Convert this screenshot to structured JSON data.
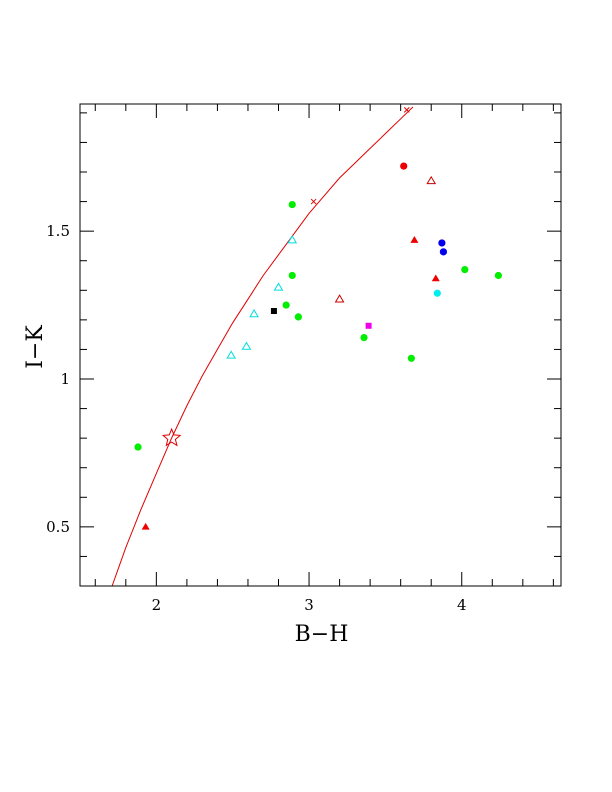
{
  "chart_data": {
    "type": "scatter",
    "xlabel": "B−H",
    "ylabel": "I−K",
    "xlim": [
      1.5,
      4.65
    ],
    "ylim": [
      0.3,
      1.93
    ],
    "x_ticks": [
      2,
      3,
      4
    ],
    "x_tick_labels": [
      "2",
      "3",
      "4"
    ],
    "y_ticks": [
      0.5,
      1,
      1.5
    ],
    "y_tick_labels": [
      "0.5",
      "1",
      "1.5"
    ],
    "grid": false,
    "curve": {
      "color": "#e00000",
      "points": [
        [
          1.71,
          0.3
        ],
        [
          1.8,
          0.43
        ],
        [
          1.9,
          0.56
        ],
        [
          2.0,
          0.68
        ],
        [
          2.1,
          0.8
        ],
        [
          2.2,
          0.91
        ],
        [
          2.3,
          1.01
        ],
        [
          2.4,
          1.1
        ],
        [
          2.5,
          1.19
        ],
        [
          2.6,
          1.27
        ],
        [
          2.7,
          1.35
        ],
        [
          2.8,
          1.42
        ],
        [
          2.9,
          1.49
        ],
        [
          3.0,
          1.56
        ],
        [
          3.1,
          1.62
        ],
        [
          3.2,
          1.68
        ],
        [
          3.3,
          1.73
        ],
        [
          3.4,
          1.78
        ],
        [
          3.5,
          1.83
        ],
        [
          3.6,
          1.88
        ],
        [
          3.68,
          1.92
        ]
      ]
    },
    "curve_markers": [
      {
        "x": 3.03,
        "y": 1.6
      },
      {
        "x": 3.64,
        "y": 1.91
      }
    ],
    "star_marker": {
      "x": 2.1,
      "y": 0.8,
      "color": "#e00000"
    },
    "series": [
      {
        "marker": "circle",
        "color": "#00ee00",
        "points": [
          [
            1.88,
            0.77
          ],
          [
            2.89,
            1.59
          ],
          [
            2.89,
            1.35
          ],
          [
            2.85,
            1.25
          ],
          [
            2.93,
            1.21
          ],
          [
            3.36,
            1.14
          ],
          [
            3.67,
            1.07
          ],
          [
            4.02,
            1.37
          ],
          [
            4.24,
            1.35
          ]
        ]
      },
      {
        "marker": "circle",
        "color": "#ee0000",
        "points": [
          [
            3.62,
            1.72
          ]
        ]
      },
      {
        "marker": "circle",
        "color": "#0000ee",
        "points": [
          [
            3.87,
            1.46
          ],
          [
            3.88,
            1.43
          ]
        ]
      },
      {
        "marker": "circle",
        "color": "#00eeee",
        "points": [
          [
            3.84,
            1.29
          ]
        ]
      },
      {
        "marker": "triangle-filled",
        "color": "#ee0000",
        "points": [
          [
            1.93,
            0.5
          ],
          [
            3.69,
            1.47
          ],
          [
            3.83,
            1.34
          ]
        ]
      },
      {
        "marker": "triangle-open",
        "color": "#cc0000",
        "points": [
          [
            3.8,
            1.67
          ],
          [
            3.2,
            1.27
          ]
        ]
      },
      {
        "marker": "triangle-open",
        "color": "#00dddd",
        "points": [
          [
            2.89,
            1.47
          ],
          [
            2.8,
            1.31
          ],
          [
            2.64,
            1.22
          ],
          [
            2.59,
            1.11
          ],
          [
            2.49,
            1.08
          ]
        ]
      },
      {
        "marker": "square",
        "color": "#000000",
        "points": [
          [
            2.77,
            1.23
          ]
        ]
      },
      {
        "marker": "square",
        "color": "#ee00ee",
        "points": [
          [
            3.39,
            1.18
          ]
        ]
      }
    ]
  }
}
